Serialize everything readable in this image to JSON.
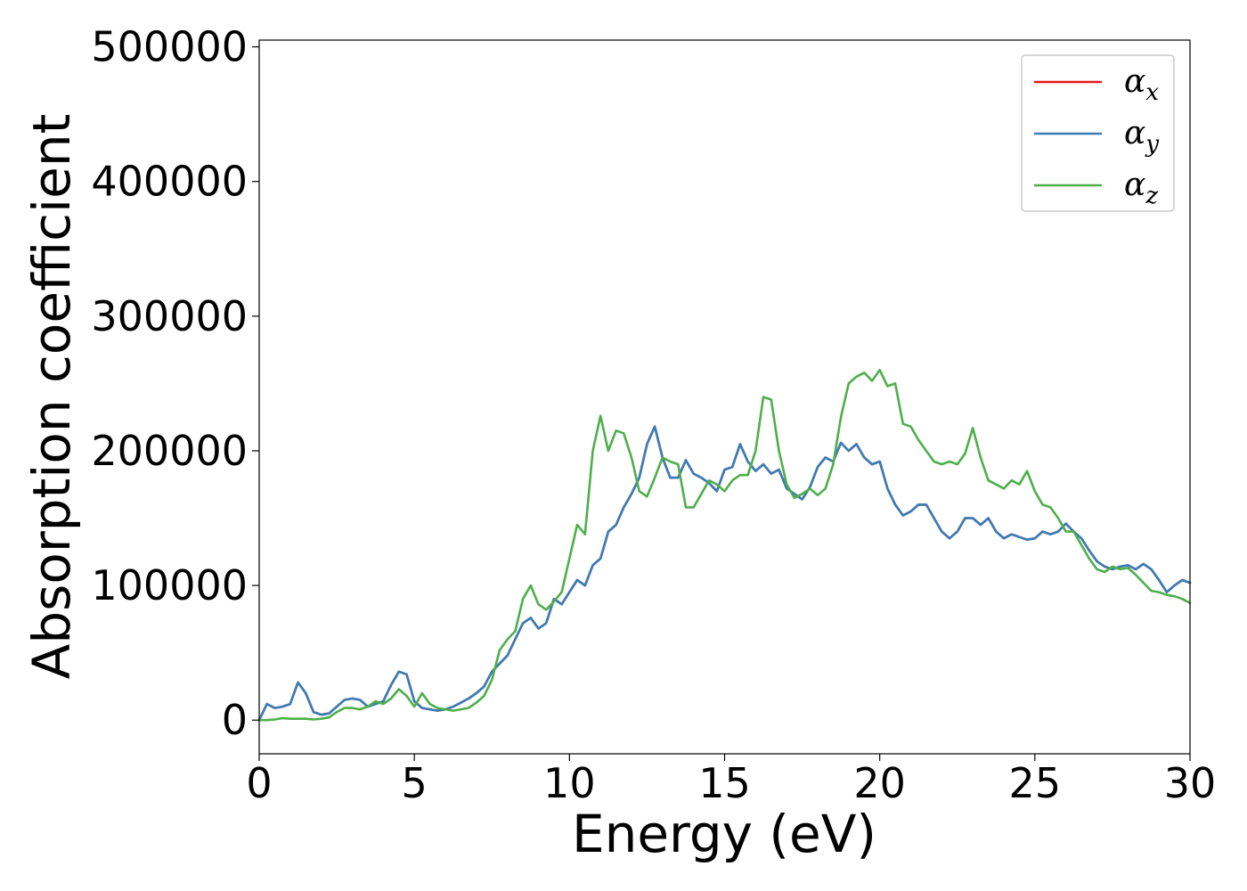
{
  "chart_data": {
    "type": "line",
    "title": "",
    "xlabel": "Energy (eV)",
    "ylabel": "Absorption coefficient",
    "xlim": [
      0,
      30
    ],
    "ylim": [
      -25000,
      505000
    ],
    "xticks": [
      0,
      5,
      10,
      15,
      20,
      25,
      30
    ],
    "yticks": [
      0,
      100000,
      200000,
      300000,
      400000,
      500000
    ],
    "grid": false,
    "legend_position": "top-right",
    "series": [
      {
        "name": "α_x",
        "label_base": "α",
        "label_sub": "x",
        "color": "#e41a1c",
        "x": [
          0,
          0.25,
          0.5,
          0.75,
          1.0,
          1.25,
          1.5,
          1.75,
          2.0,
          2.25,
          2.5,
          2.75,
          3.0,
          3.25,
          3.5,
          3.75,
          4.0,
          4.25,
          4.5,
          4.75,
          5.0,
          5.25,
          5.5,
          5.75,
          6.0,
          6.25,
          6.5,
          6.75,
          7.0,
          7.25,
          7.5,
          7.75,
          8.0,
          8.25,
          8.5,
          8.75,
          9.0,
          9.25,
          9.5,
          9.75,
          10.0,
          10.25,
          10.5,
          10.75,
          11.0,
          11.25,
          11.5,
          11.75,
          12.0,
          12.25,
          12.5,
          12.75,
          13.0,
          13.25,
          13.5,
          13.75,
          14.0,
          14.25,
          14.5,
          14.75,
          15.0,
          15.25,
          15.5,
          15.75,
          16.0,
          16.25,
          16.5,
          16.75,
          17.0,
          17.25,
          17.5,
          17.75,
          18.0,
          18.25,
          18.5,
          18.75,
          19.0,
          19.25,
          19.5,
          19.75,
          20.0,
          20.25,
          20.5,
          20.75,
          21.0,
          21.25,
          21.5,
          21.75,
          22.0,
          22.25,
          22.5,
          22.75,
          23.0,
          23.25,
          23.5,
          23.75,
          24.0,
          24.25,
          24.5,
          24.75,
          25.0,
          25.25,
          25.5,
          25.75,
          26.0,
          26.25,
          26.5,
          26.75,
          27.0,
          27.25,
          27.5,
          27.75,
          28.0,
          28.25,
          28.5,
          28.75,
          29.0,
          29.25,
          29.5,
          29.75,
          30.0
        ],
        "y": [
          0,
          12000,
          9000,
          10000,
          12000,
          28000,
          20000,
          6000,
          4000,
          5000,
          10000,
          15000,
          16000,
          15000,
          10000,
          12000,
          14000,
          26000,
          36000,
          34000,
          14000,
          9000,
          8000,
          7000,
          8000,
          10000,
          13000,
          16000,
          20000,
          25000,
          36000,
          42000,
          48000,
          60000,
          72000,
          76000,
          68000,
          72000,
          90000,
          86000,
          95000,
          104000,
          100000,
          115000,
          120000,
          140000,
          145000,
          158000,
          168000,
          180000,
          205000,
          218000,
          195000,
          180000,
          180000,
          193000,
          183000,
          180000,
          176000,
          170000,
          186000,
          188000,
          205000,
          192000,
          185000,
          190000,
          183000,
          186000,
          172000,
          168000,
          164000,
          173000,
          188000,
          195000,
          192000,
          206000,
          200000,
          205000,
          195000,
          190000,
          192000,
          172000,
          160000,
          152000,
          155000,
          160000,
          160000,
          150000,
          140000,
          135000,
          140000,
          150000,
          150000,
          145000,
          150000,
          140000,
          135000,
          138000,
          136000,
          134000,
          135000,
          140000,
          138000,
          140000,
          146000,
          140000,
          135000,
          126000,
          118000,
          114000,
          112000,
          114000,
          115000,
          112000,
          116000,
          112000,
          104000,
          95000,
          100000,
          104000,
          102000
        ]
      },
      {
        "name": "α_y",
        "label_base": "α",
        "label_sub": "y",
        "color": "#377eb8",
        "x": [
          0,
          0.25,
          0.5,
          0.75,
          1.0,
          1.25,
          1.5,
          1.75,
          2.0,
          2.25,
          2.5,
          2.75,
          3.0,
          3.25,
          3.5,
          3.75,
          4.0,
          4.25,
          4.5,
          4.75,
          5.0,
          5.25,
          5.5,
          5.75,
          6.0,
          6.25,
          6.5,
          6.75,
          7.0,
          7.25,
          7.5,
          7.75,
          8.0,
          8.25,
          8.5,
          8.75,
          9.0,
          9.25,
          9.5,
          9.75,
          10.0,
          10.25,
          10.5,
          10.75,
          11.0,
          11.25,
          11.5,
          11.75,
          12.0,
          12.25,
          12.5,
          12.75,
          13.0,
          13.25,
          13.5,
          13.75,
          14.0,
          14.25,
          14.5,
          14.75,
          15.0,
          15.25,
          15.5,
          15.75,
          16.0,
          16.25,
          16.5,
          16.75,
          17.0,
          17.25,
          17.5,
          17.75,
          18.0,
          18.25,
          18.5,
          18.75,
          19.0,
          19.25,
          19.5,
          19.75,
          20.0,
          20.25,
          20.5,
          20.75,
          21.0,
          21.25,
          21.5,
          21.75,
          22.0,
          22.25,
          22.5,
          22.75,
          23.0,
          23.25,
          23.5,
          23.75,
          24.0,
          24.25,
          24.5,
          24.75,
          25.0,
          25.25,
          25.5,
          25.75,
          26.0,
          26.25,
          26.5,
          26.75,
          27.0,
          27.25,
          27.5,
          27.75,
          28.0,
          28.25,
          28.5,
          28.75,
          29.0,
          29.25,
          29.5,
          29.75,
          30.0
        ],
        "y": [
          0,
          12000,
          9000,
          10000,
          12000,
          28000,
          20000,
          6000,
          4000,
          5000,
          10000,
          15000,
          16000,
          15000,
          10000,
          12000,
          14000,
          26000,
          36000,
          34000,
          14000,
          9000,
          8000,
          7000,
          8000,
          10000,
          13000,
          16000,
          20000,
          25000,
          36000,
          42000,
          48000,
          60000,
          72000,
          76000,
          68000,
          72000,
          90000,
          86000,
          95000,
          104000,
          100000,
          115000,
          120000,
          140000,
          145000,
          158000,
          168000,
          180000,
          205000,
          218000,
          195000,
          180000,
          180000,
          193000,
          183000,
          180000,
          176000,
          170000,
          186000,
          188000,
          205000,
          192000,
          185000,
          190000,
          183000,
          186000,
          172000,
          168000,
          164000,
          173000,
          188000,
          195000,
          192000,
          206000,
          200000,
          205000,
          195000,
          190000,
          192000,
          172000,
          160000,
          152000,
          155000,
          160000,
          160000,
          150000,
          140000,
          135000,
          140000,
          150000,
          150000,
          145000,
          150000,
          140000,
          135000,
          138000,
          136000,
          134000,
          135000,
          140000,
          138000,
          140000,
          146000,
          140000,
          135000,
          126000,
          118000,
          114000,
          112000,
          114000,
          115000,
          112000,
          116000,
          112000,
          104000,
          95000,
          100000,
          104000,
          102000
        ]
      },
      {
        "name": "α_z",
        "label_base": "α",
        "label_sub": "z",
        "color": "#4daf4a",
        "x": [
          0,
          0.25,
          0.5,
          0.75,
          1.0,
          1.25,
          1.5,
          1.75,
          2.0,
          2.25,
          2.5,
          2.75,
          3.0,
          3.25,
          3.5,
          3.75,
          4.0,
          4.25,
          4.5,
          4.75,
          5.0,
          5.25,
          5.5,
          5.75,
          6.0,
          6.25,
          6.5,
          6.75,
          7.0,
          7.25,
          7.5,
          7.75,
          8.0,
          8.25,
          8.5,
          8.75,
          9.0,
          9.25,
          9.5,
          9.75,
          10.0,
          10.25,
          10.5,
          10.75,
          11.0,
          11.25,
          11.5,
          11.75,
          12.0,
          12.25,
          12.5,
          12.75,
          13.0,
          13.25,
          13.5,
          13.75,
          14.0,
          14.25,
          14.5,
          14.75,
          15.0,
          15.25,
          15.5,
          15.75,
          16.0,
          16.25,
          16.5,
          16.75,
          17.0,
          17.25,
          17.5,
          17.75,
          18.0,
          18.25,
          18.5,
          18.75,
          19.0,
          19.25,
          19.5,
          19.75,
          20.0,
          20.25,
          20.5,
          20.75,
          21.0,
          21.25,
          21.5,
          21.75,
          22.0,
          22.25,
          22.5,
          22.75,
          23.0,
          23.25,
          23.5,
          23.75,
          24.0,
          24.25,
          24.5,
          24.75,
          25.0,
          25.25,
          25.5,
          25.75,
          26.0,
          26.25,
          26.5,
          26.75,
          27.0,
          27.25,
          27.5,
          27.75,
          28.0,
          28.25,
          28.5,
          28.75,
          29.0,
          29.25,
          29.5,
          29.75,
          30.0
        ],
        "y": [
          0,
          0,
          500,
          1500,
          1000,
          1000,
          1000,
          500,
          1000,
          2000,
          6000,
          9000,
          9000,
          8000,
          10000,
          14000,
          12000,
          16000,
          23000,
          18000,
          10000,
          20000,
          12000,
          9000,
          8000,
          7000,
          8000,
          9000,
          13000,
          18000,
          30000,
          52000,
          60000,
          66000,
          90000,
          100000,
          86000,
          82000,
          88000,
          95000,
          120000,
          145000,
          138000,
          200000,
          226000,
          200000,
          215000,
          213000,
          195000,
          170000,
          166000,
          180000,
          195000,
          192000,
          190000,
          158000,
          158000,
          168000,
          178000,
          175000,
          170000,
          178000,
          182000,
          182000,
          200000,
          240000,
          238000,
          200000,
          175000,
          165000,
          168000,
          172000,
          167000,
          172000,
          190000,
          225000,
          250000,
          255000,
          258000,
          252000,
          260000,
          248000,
          250000,
          220000,
          218000,
          208000,
          200000,
          192000,
          190000,
          192000,
          190000,
          198000,
          217000,
          195000,
          178000,
          175000,
          172000,
          178000,
          175000,
          185000,
          170000,
          160000,
          158000,
          150000,
          140000,
          140000,
          130000,
          120000,
          112000,
          110000,
          114000,
          112000,
          113000,
          108000,
          102000,
          96000,
          95000,
          93000,
          92000,
          90000,
          87000
        ]
      }
    ]
  }
}
